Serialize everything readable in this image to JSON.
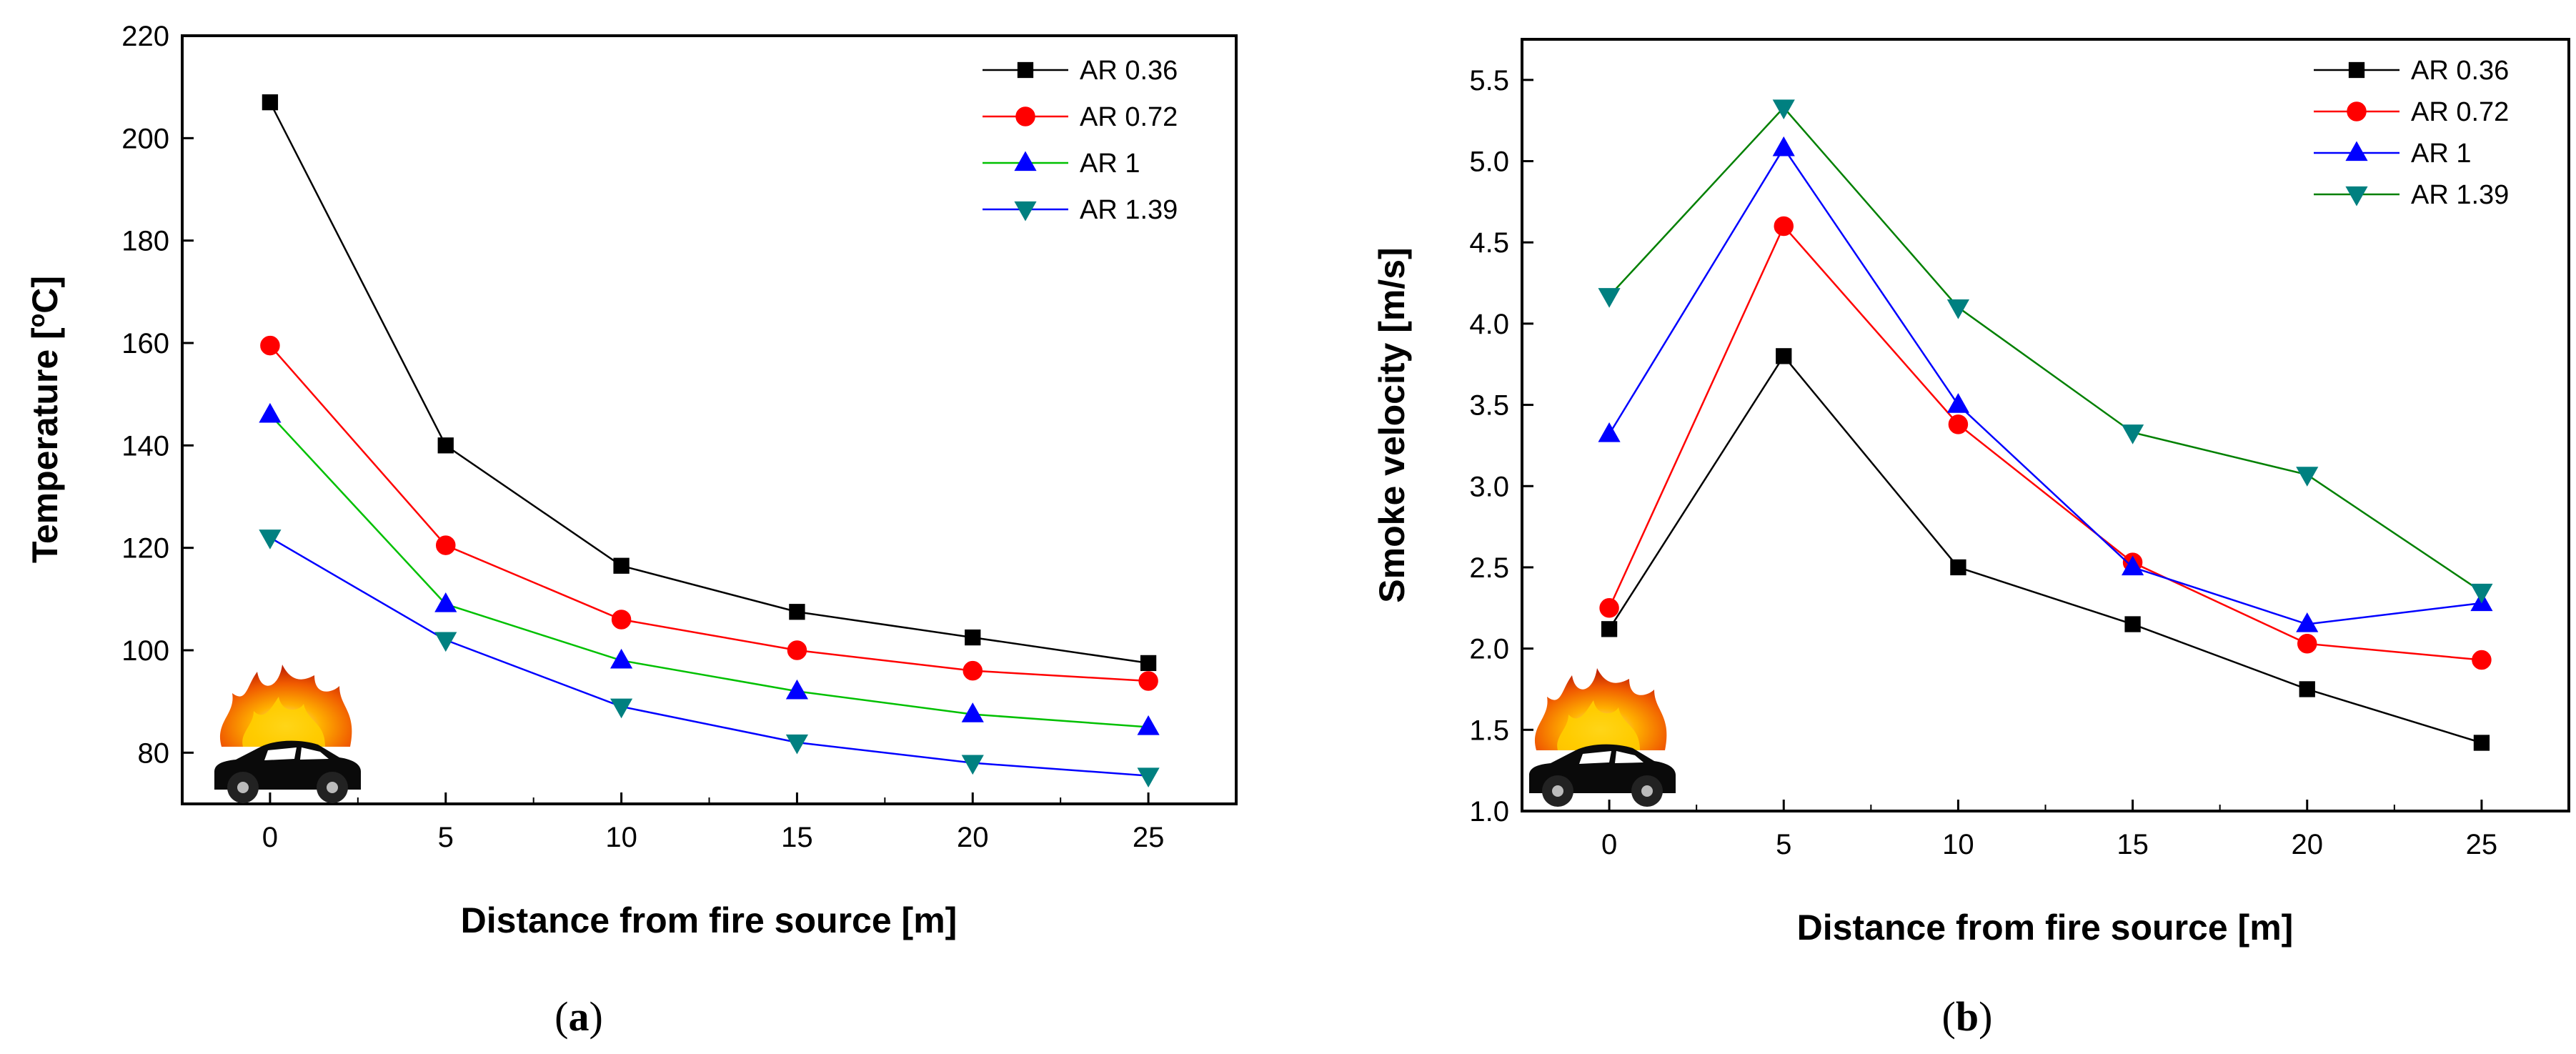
{
  "chart_data": [
    {
      "type": "line",
      "panel_label": "(a)",
      "panel_letter": "a",
      "xlabel": "Distance from fire source [m]",
      "ylabel": "Temperature [°C]",
      "ylabel_parts": [
        "Temperature [",
        "o",
        "C]"
      ],
      "x": [
        0,
        5,
        10,
        15,
        20,
        25
      ],
      "xlim": [
        -2.5,
        27.5
      ],
      "ylim": [
        70,
        220
      ],
      "xticks": [
        0,
        5,
        10,
        15,
        20,
        25
      ],
      "yticks": [
        80,
        100,
        120,
        140,
        160,
        180,
        200,
        220
      ],
      "legend_position": "top-right",
      "series": [
        {
          "name": "AR 0.36",
          "marker": "square",
          "color": "#000000",
          "values": [
            207,
            140,
            116.5,
            107.5,
            102.5,
            97.5
          ]
        },
        {
          "name": "AR 0.72",
          "marker": "circle",
          "color": "#ff0000",
          "values": [
            159.5,
            120.5,
            106,
            100,
            96,
            94
          ]
        },
        {
          "name": "AR 1",
          "marker": "triangle-up",
          "color": "#0000ff",
          "lineColor": "#00c000",
          "values": [
            146,
            109,
            98,
            92,
            87.5,
            85
          ]
        },
        {
          "name": "AR 1.39",
          "marker": "triangle-down",
          "color": "#008080",
          "lineColor": "#0000ff",
          "values": [
            122,
            102,
            89,
            82,
            78,
            75.5
          ]
        }
      ]
    },
    {
      "type": "line",
      "panel_label": "(b)",
      "panel_letter": "b",
      "xlabel": "Distance from fire source [m]",
      "ylabel": "Smoke velocity [m/s]",
      "x": [
        0,
        5,
        10,
        15,
        20,
        25
      ],
      "xlim": [
        -2.5,
        27.5
      ],
      "ylim": [
        1.0,
        5.75
      ],
      "xticks": [
        0,
        5,
        10,
        15,
        20,
        25
      ],
      "yticks": [
        1.0,
        1.5,
        2.0,
        2.5,
        3.0,
        3.5,
        4.0,
        4.5,
        5.0,
        5.5
      ],
      "ytick_labels": [
        "1.0",
        "1.5",
        "2.0",
        "2.5",
        "3.0",
        "3.5",
        "4.0",
        "4.5",
        "5.0",
        "5.5"
      ],
      "legend_position": "top-right",
      "series": [
        {
          "name": "AR 0.36",
          "marker": "square",
          "color": "#000000",
          "values": [
            2.12,
            3.8,
            2.5,
            2.15,
            1.75,
            1.42
          ]
        },
        {
          "name": "AR 0.72",
          "marker": "circle",
          "color": "#ff0000",
          "values": [
            2.25,
            4.6,
            3.38,
            2.53,
            2.03,
            1.93
          ]
        },
        {
          "name": "AR 1",
          "marker": "triangle-up",
          "color": "#0000ff",
          "lineColor": "#0000ff",
          "values": [
            3.32,
            5.08,
            3.5,
            2.5,
            2.15,
            2.28
          ]
        },
        {
          "name": "AR 1.39",
          "marker": "triangle-down",
          "color": "#008080",
          "lineColor": "#008000",
          "values": [
            4.17,
            5.33,
            4.1,
            3.33,
            3.07,
            2.35
          ]
        }
      ]
    }
  ],
  "icons": [
    "car-fire-icon"
  ]
}
